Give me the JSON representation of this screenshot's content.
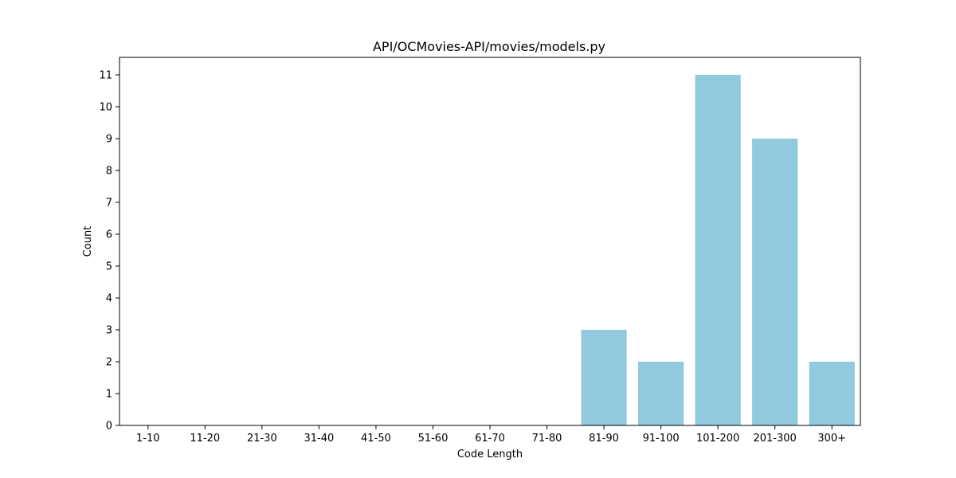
{
  "chart_data": {
    "type": "bar",
    "title": "API/OCMovies-API/movies/models.py",
    "xlabel": "Code Length",
    "ylabel": "Count",
    "categories": [
      "1-10",
      "11-20",
      "21-30",
      "31-40",
      "41-50",
      "51-60",
      "61-70",
      "71-80",
      "81-90",
      "91-100",
      "101-200",
      "201-300",
      "300+"
    ],
    "values": [
      0,
      0,
      0,
      0,
      0,
      0,
      0,
      0,
      3,
      2,
      11,
      9,
      2
    ],
    "ylim": [
      0,
      11.55
    ],
    "yticks": [
      0,
      1,
      2,
      3,
      4,
      5,
      6,
      7,
      8,
      9,
      10,
      11
    ],
    "bar_color": "#92c9df",
    "grid": false,
    "legend": "none"
  }
}
